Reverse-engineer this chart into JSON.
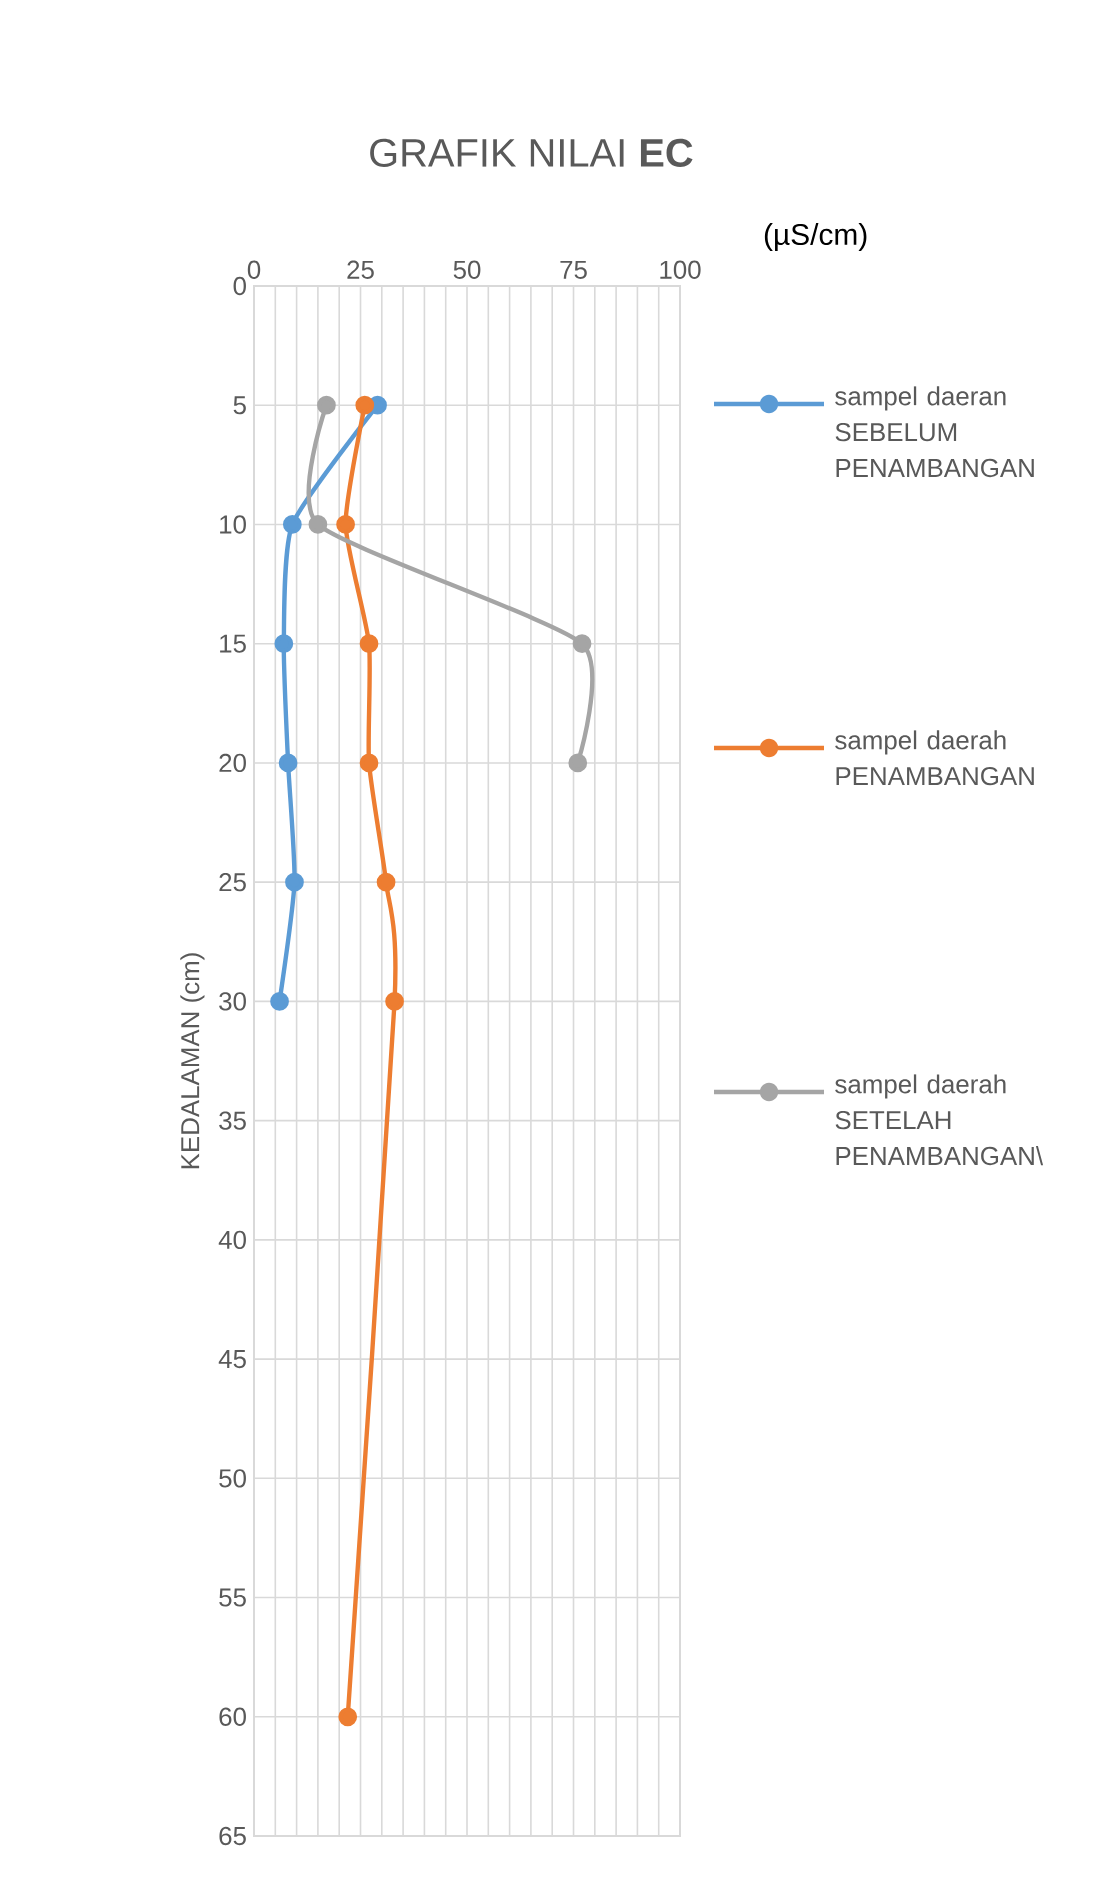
{
  "chart_data": {
    "type": "line",
    "title": "GRAFIK NILAI **EC**",
    "xlabel": "(µS/cm)",
    "ylabel": "KEDALAMAN (cm)",
    "xlim": [
      0,
      100
    ],
    "xticks": [
      0,
      {
        "value": 5,
        "label": null
      },
      {
        "value": 10,
        "label": null
      },
      {
        "value": 15,
        "label": null
      },
      {
        "value": 20,
        "label": null
      },
      25,
      {
        "value": 30,
        "label": null
      },
      {
        "value": 35,
        "label": null
      },
      {
        "value": 40,
        "label": null
      },
      {
        "value": 45,
        "label": null
      },
      50,
      {
        "value": 55,
        "label": null
      },
      {
        "value": 60,
        "label": null
      },
      {
        "value": 65,
        "label": null
      },
      {
        "value": 70,
        "label": null
      },
      75,
      {
        "value": 80,
        "label": null
      },
      {
        "value": 85,
        "label": null
      },
      {
        "value": 90,
        "label": null
      },
      {
        "value": 95,
        "label": null
      },
      100
    ],
    "ylim": [
      65,
      0
    ],
    "yticks": [
      0,
      5,
      10,
      15,
      20,
      25,
      30,
      35,
      40,
      45,
      50,
      55,
      60,
      65
    ],
    "grid": true,
    "legend": "right",
    "marker": "circle",
    "line_style": "solid",
    "series": [
      {
        "name": "sampel daeran SEBELUM PENAMBANGAN",
        "color": "#5b9bd5",
        "x": [
          29,
          9,
          7,
          8,
          9.5,
          6
        ],
        "values": [
          5,
          10,
          15,
          20,
          25,
          30
        ]
      },
      {
        "name": "sampel daerah PENAMBANGAN",
        "color": "#ed7d31",
        "x": [
          26,
          21.5,
          27,
          27,
          31,
          33,
          22
        ],
        "values": [
          5,
          10,
          15,
          20,
          25,
          30,
          60
        ]
      },
      {
        "name": "sampel daerah SETELAH PENAMBANGAN\\",
        "color": "#a5a5a5",
        "x": [
          17,
          15,
          77,
          76
        ],
        "values": [
          5,
          10,
          15,
          20
        ]
      }
    ]
  }
}
